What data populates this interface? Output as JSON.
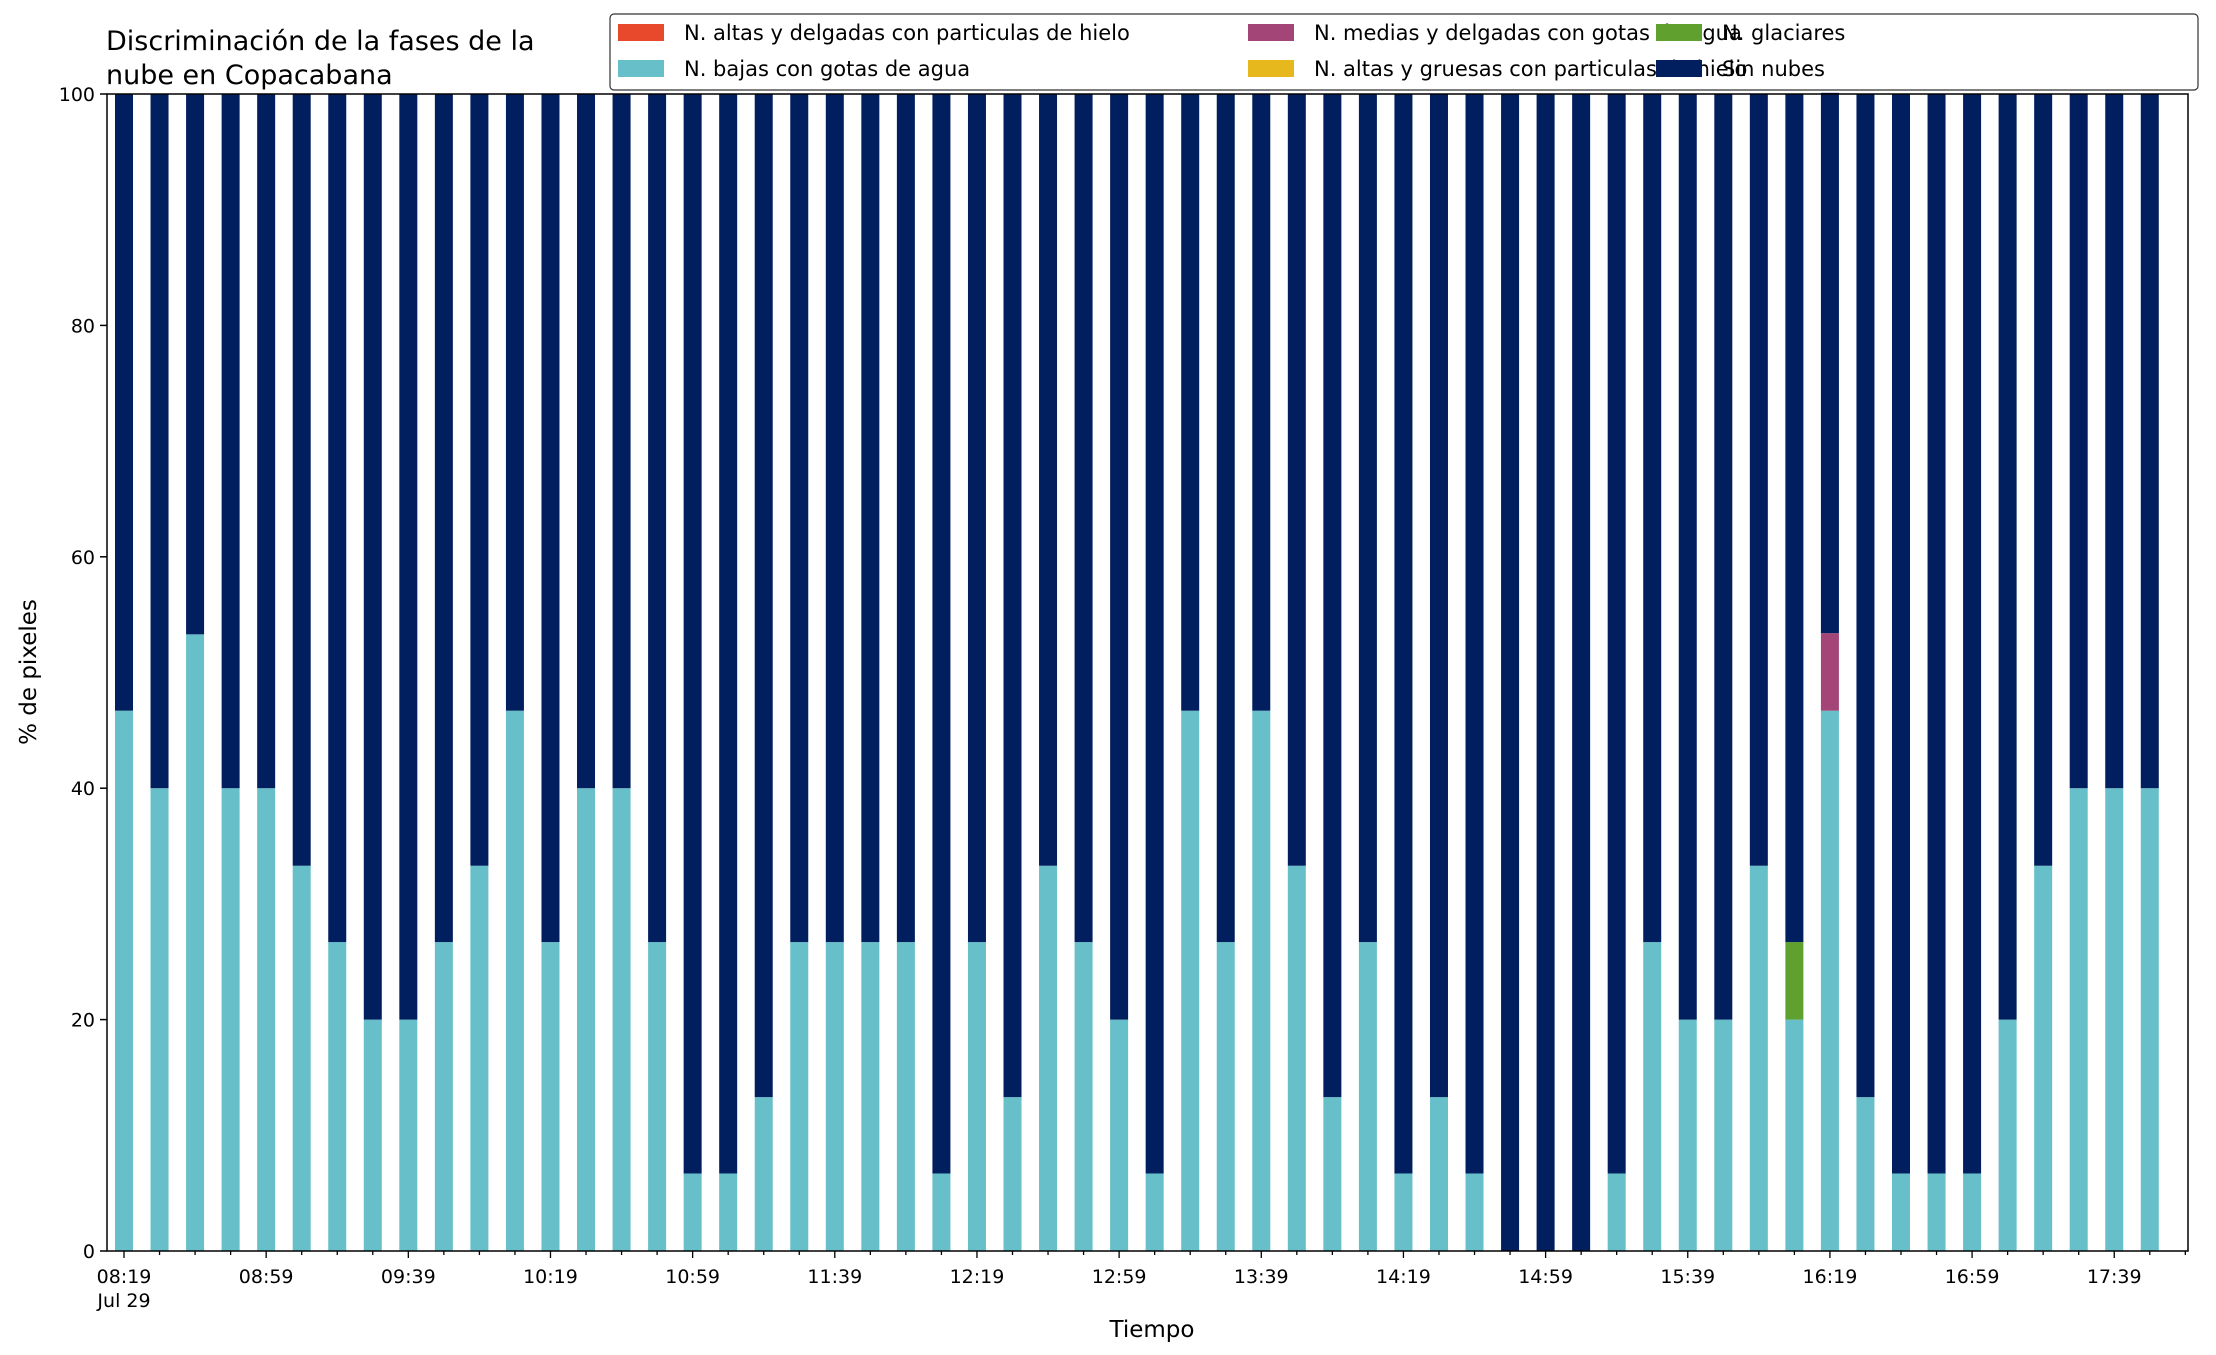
{
  "chart_data": {
    "type": "bar",
    "stacked": true,
    "title_lines": [
      "Discriminación de la fases de la",
      "nube en Copacabana"
    ],
    "xlabel": "Tiempo",
    "ylabel": "% de pixeles",
    "ylim": [
      0,
      100
    ],
    "yticks": [
      0,
      20,
      40,
      60,
      80,
      100
    ],
    "grid": false,
    "legend_position": "top-right",
    "x_interval_minutes": 10,
    "x": [
      "08:19",
      "08:29",
      "08:39",
      "08:49",
      "08:59",
      "09:09",
      "09:19",
      "09:29",
      "09:39",
      "09:49",
      "09:59",
      "10:09",
      "10:19",
      "10:29",
      "10:39",
      "10:49",
      "10:59",
      "11:09",
      "11:19",
      "11:29",
      "11:39",
      "11:49",
      "11:59",
      "12:09",
      "12:19",
      "12:29",
      "12:39",
      "12:49",
      "12:59",
      "13:09",
      "13:19",
      "13:29",
      "13:39",
      "13:49",
      "13:59",
      "14:09",
      "14:19",
      "14:29",
      "14:39",
      "14:49",
      "14:59",
      "15:09",
      "15:19",
      "15:29",
      "15:39",
      "15:49",
      "15:59",
      "16:09",
      "16:19",
      "16:29",
      "16:39",
      "16:49",
      "16:59",
      "17:09",
      "17:19",
      "17:29",
      "17:39",
      "17:49"
    ],
    "x_tick_labels": [
      {
        "label": "08:19",
        "sublabel": "Jul 29"
      },
      {
        "label": "08:59",
        "sublabel": ""
      },
      {
        "label": "09:39",
        "sublabel": ""
      },
      {
        "label": "10:19",
        "sublabel": ""
      },
      {
        "label": "10:59",
        "sublabel": ""
      },
      {
        "label": "11:39",
        "sublabel": ""
      },
      {
        "label": "12:19",
        "sublabel": ""
      },
      {
        "label": "12:59",
        "sublabel": ""
      },
      {
        "label": "13:39",
        "sublabel": ""
      },
      {
        "label": "14:19",
        "sublabel": ""
      },
      {
        "label": "14:59",
        "sublabel": ""
      },
      {
        "label": "15:39",
        "sublabel": ""
      },
      {
        "label": "16:19",
        "sublabel": ""
      },
      {
        "label": "16:59",
        "sublabel": ""
      },
      {
        "label": "17:39",
        "sublabel": ""
      }
    ],
    "series": [
      {
        "name": "N. bajas con gotas de agua",
        "color": "#66bfc9",
        "values": [
          46.7,
          40,
          53.3,
          40,
          40,
          33.3,
          26.7,
          20,
          20,
          26.7,
          33.3,
          46.7,
          26.7,
          40,
          40,
          26.7,
          6.7,
          6.7,
          13.3,
          26.7,
          26.7,
          26.7,
          26.7,
          6.7,
          26.7,
          13.3,
          33.3,
          26.7,
          20,
          6.7,
          46.7,
          26.7,
          46.7,
          33.3,
          13.3,
          26.7,
          6.7,
          13.3,
          6.7,
          0,
          0,
          0,
          6.7,
          26.7,
          20,
          20,
          33.3,
          20,
          46.7,
          13.3,
          6.7,
          6.7,
          6.7,
          20,
          33.3,
          40,
          40,
          40
        ]
      },
      {
        "name": "N. glaciares",
        "color": "#5fa02f",
        "values": [
          0,
          0,
          0,
          0,
          0,
          0,
          0,
          0,
          0,
          0,
          0,
          0,
          0,
          0,
          0,
          0,
          0,
          0,
          0,
          0,
          0,
          0,
          0,
          0,
          0,
          0,
          0,
          0,
          0,
          0,
          0,
          0,
          0,
          0,
          0,
          0,
          0,
          0,
          0,
          0,
          0,
          0,
          0,
          0,
          0,
          0,
          0,
          6.7,
          0,
          0,
          0,
          0,
          0,
          0,
          0,
          0,
          0,
          0
        ]
      },
      {
        "name": "N. medias y delgadas con gotas de agua",
        "color": "#a34577",
        "values": [
          0,
          0,
          0,
          0,
          0,
          0,
          0,
          0,
          0,
          0,
          0,
          0,
          0,
          0,
          0,
          0,
          0,
          0,
          0,
          0,
          0,
          0,
          0,
          0,
          0,
          0,
          0,
          0,
          0,
          0,
          0,
          0,
          0,
          0,
          0,
          0,
          0,
          0,
          0,
          0,
          0,
          0,
          0,
          0,
          0,
          0,
          0,
          0,
          6.7,
          0,
          0,
          0,
          0,
          0,
          0,
          0,
          0,
          0
        ]
      },
      {
        "name": "N. altas y delgadas con particulas de hielo",
        "color": "#e8482c",
        "values": [
          0,
          0,
          0,
          0,
          0,
          0,
          0,
          0,
          0,
          0,
          0,
          0,
          0,
          0,
          0,
          0,
          0,
          0,
          0,
          0,
          0,
          0,
          0,
          0,
          0,
          0,
          0,
          0,
          0,
          0,
          0,
          0,
          0,
          0,
          0,
          0,
          0,
          0,
          0,
          0,
          0,
          0,
          0,
          0,
          0,
          0,
          0,
          0,
          0,
          0,
          0,
          0,
          0,
          0,
          0,
          0,
          0,
          0
        ]
      },
      {
        "name": "N. altas y gruesas con particulas de hielo",
        "color": "#e6b81e",
        "values": [
          0,
          0,
          0,
          0,
          0,
          0,
          0,
          0,
          0,
          0,
          0,
          0,
          0,
          0,
          0,
          0,
          0,
          0,
          0,
          0,
          0,
          0,
          0,
          0,
          0,
          0,
          0,
          0,
          0,
          0,
          0,
          0,
          0,
          0,
          0,
          0,
          0,
          0,
          0,
          0,
          0,
          0,
          0,
          0,
          0,
          0,
          0,
          0,
          0,
          0,
          0,
          0,
          0,
          0,
          0,
          0,
          0,
          0
        ]
      },
      {
        "name": "Sin nubes",
        "color": "#011e5f",
        "values": [
          53.3,
          60,
          46.7,
          60,
          60,
          66.7,
          73.3,
          80,
          80,
          73.3,
          66.7,
          53.3,
          73.3,
          60,
          60,
          73.3,
          93.3,
          93.3,
          86.7,
          73.3,
          73.3,
          73.3,
          73.3,
          93.3,
          73.3,
          86.7,
          66.7,
          73.3,
          80,
          93.3,
          53.3,
          73.3,
          53.3,
          66.7,
          86.7,
          73.3,
          93.3,
          86.7,
          93.3,
          100,
          100,
          100,
          93.3,
          73.3,
          80,
          80,
          66.7,
          73.3,
          46.7,
          86.7,
          93.3,
          93.3,
          93.3,
          80,
          66.7,
          60,
          60,
          60
        ]
      }
    ],
    "legend": [
      {
        "name": "N. altas y delgadas con particulas de hielo",
        "color": "#e8482c"
      },
      {
        "name": "N. bajas con gotas de agua",
        "color": "#66bfc9"
      },
      {
        "name": "N. medias y delgadas con gotas de agua",
        "color": "#a34577"
      },
      {
        "name": "N. altas y gruesas con particulas de hielo",
        "color": "#e6b81e"
      },
      {
        "name": "N. glaciares",
        "color": "#5fa02f"
      },
      {
        "name": "Sin nubes",
        "color": "#011e5f"
      }
    ]
  }
}
